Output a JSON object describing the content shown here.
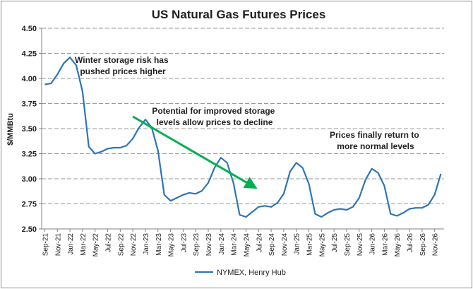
{
  "chart_data": {
    "type": "line",
    "title": "US Natural Gas Futures Prices",
    "ylabel": "$/MMBtu",
    "xlabel": "",
    "ylim": [
      2.5,
      4.5
    ],
    "yticks": [
      "2.50",
      "2.75",
      "3.00",
      "3.25",
      "3.50",
      "3.75",
      "4.00",
      "4.25",
      "4.50"
    ],
    "grid": "horizontal dashed",
    "legend": "bottom-center",
    "x_labels": [
      "Sep-21",
      "Nov-21",
      "Jan-22",
      "Mar-22",
      "May-22",
      "Jul-22",
      "Sep-22",
      "Nov-22",
      "Jan-23",
      "Mar-23",
      "May-23",
      "Jul-23",
      "Sep-23",
      "Nov-23",
      "Jan-24",
      "Mar-24",
      "May-24",
      "Jul-24",
      "Sep-24",
      "Nov-24",
      "Jan-25",
      "Mar-25",
      "May-25",
      "Jul-25",
      "Sep-25",
      "Nov-25",
      "Jan-26",
      "Mar-26",
      "May-26",
      "Jul-26",
      "Sep-26",
      "Nov-26"
    ],
    "series": [
      {
        "name": "NYMEX, Henry Hub",
        "color": "#2e75b6",
        "values": [
          3.94,
          3.95,
          4.04,
          4.15,
          4.21,
          4.13,
          3.87,
          3.32,
          3.25,
          3.27,
          3.3,
          3.31,
          3.31,
          3.33,
          3.4,
          3.51,
          3.59,
          3.51,
          3.28,
          2.84,
          2.78,
          2.81,
          2.84,
          2.86,
          2.85,
          2.88,
          2.96,
          3.11,
          3.21,
          3.16,
          2.96,
          2.64,
          2.62,
          2.67,
          2.72,
          2.73,
          2.72,
          2.76,
          2.85,
          3.07,
          3.16,
          3.11,
          2.95,
          2.65,
          2.62,
          2.66,
          2.69,
          2.7,
          2.69,
          2.72,
          2.81,
          2.99,
          3.1,
          3.06,
          2.93,
          2.65,
          2.63,
          2.66,
          2.7,
          2.71,
          2.71,
          2.74,
          2.84,
          3.05
        ]
      }
    ],
    "annotations": [
      {
        "lines": [
          "Winter storage risk has",
          "pushed prices higher"
        ]
      },
      {
        "lines": [
          "Potential for improved storage",
          "levels allow prices to decline"
        ]
      },
      {
        "lines": [
          "Prices finally return to",
          "more normal levels"
        ]
      }
    ],
    "arrow": {
      "color": "#00b050",
      "from": {
        "x": "Nov-22",
        "y": 3.62
      },
      "to": {
        "x": "Jun-24",
        "y": 2.93
      }
    }
  }
}
